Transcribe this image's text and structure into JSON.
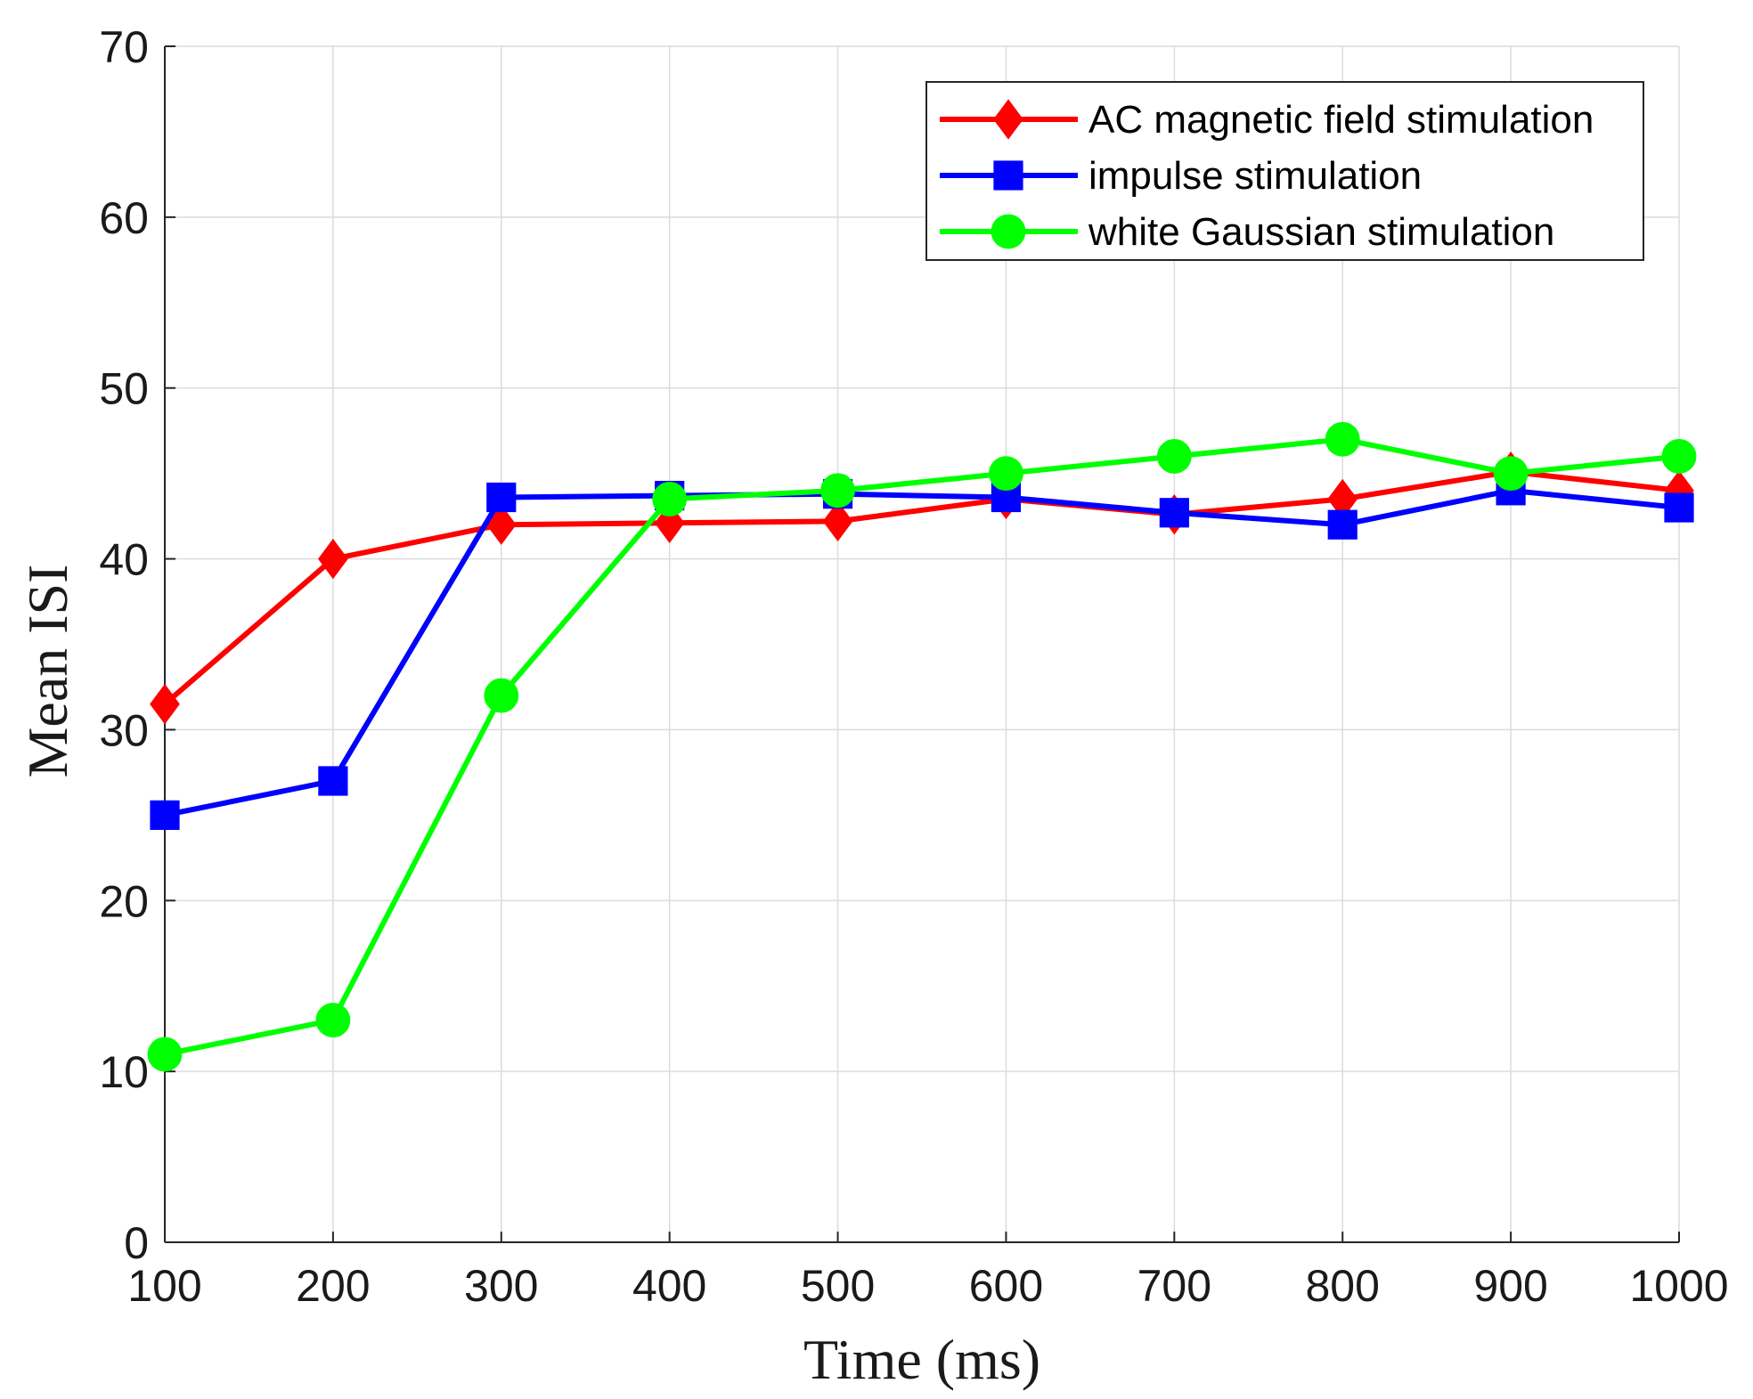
{
  "chart_data": {
    "type": "line",
    "title": "",
    "xlabel": "Time (ms)",
    "ylabel": "Mean ISI",
    "xlim": [
      100,
      1000
    ],
    "ylim": [
      0,
      70
    ],
    "xticks": [
      100,
      200,
      300,
      400,
      500,
      600,
      700,
      800,
      900,
      1000
    ],
    "yticks": [
      0,
      10,
      20,
      30,
      40,
      50,
      60,
      70
    ],
    "grid": true,
    "legend_position": "top-right",
    "x": [
      100,
      200,
      300,
      400,
      500,
      600,
      700,
      800,
      900,
      1000
    ],
    "series": [
      {
        "name": "AC magnetic field stimulation",
        "color": "#ff0000",
        "marker": "diamond",
        "values": [
          31.5,
          40,
          42,
          42.1,
          42.2,
          43.5,
          42.6,
          43.5,
          45.1,
          44
        ]
      },
      {
        "name": "impulse stimulation",
        "color": "#0000ff",
        "marker": "square",
        "values": [
          25,
          27,
          43.6,
          43.7,
          43.8,
          43.6,
          42.7,
          42,
          44,
          43
        ]
      },
      {
        "name": "white Gaussian stimulation",
        "color": "#00ff00",
        "marker": "circle",
        "values": [
          11,
          13,
          32,
          43.5,
          44,
          45,
          46,
          47,
          45,
          46
        ]
      }
    ]
  }
}
